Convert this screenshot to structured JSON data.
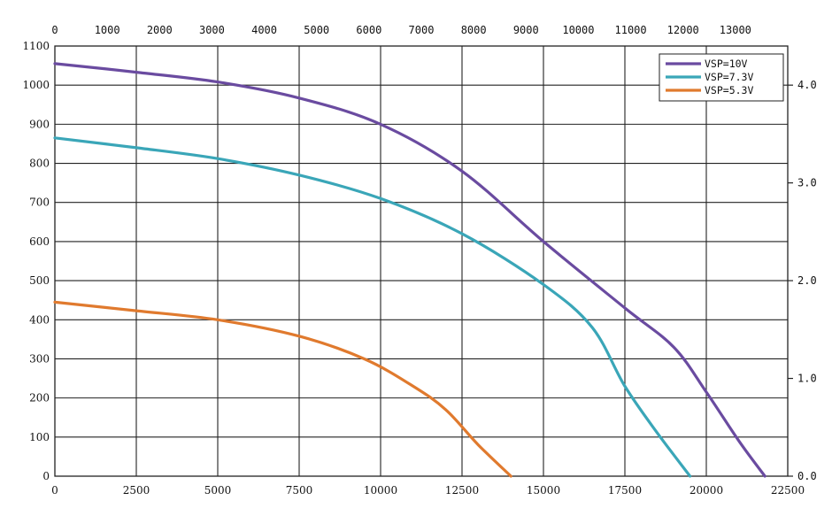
{
  "chart_data": {
    "type": "line",
    "title": "",
    "xlabel": "",
    "ylabel": "",
    "x_ticks": [
      "0",
      "2500",
      "5000",
      "7500",
      "10000",
      "12500",
      "15000",
      "17500",
      "20000",
      "22500"
    ],
    "x_top_ticks": [
      "0",
      "1000",
      "2000",
      "3000",
      "4000",
      "5000",
      "6000",
      "7000",
      "8000",
      "9000",
      "10000",
      "11000",
      "12000",
      "13000"
    ],
    "y_ticks": [
      "0",
      "100",
      "200",
      "300",
      "400",
      "500",
      "600",
      "700",
      "800",
      "900",
      "1000",
      "1100"
    ],
    "y_right_ticks": [
      "0.0",
      "1.0",
      "2.0",
      "3.0",
      "4.0"
    ],
    "xlim": [
      0,
      22500
    ],
    "ylim": [
      0,
      1100
    ],
    "x_top_lim": [
      0,
      14000
    ],
    "y_right_lim": [
      0,
      4.4
    ],
    "grid": true,
    "legend_position": "top-right",
    "series": [
      {
        "name": "VSP=10V",
        "color": "#6a4ba0",
        "points": [
          [
            0,
            1055
          ],
          [
            2500,
            1033
          ],
          [
            5000,
            1008
          ],
          [
            7500,
            967
          ],
          [
            10000,
            900
          ],
          [
            12500,
            780
          ],
          [
            15000,
            600
          ],
          [
            17500,
            430
          ],
          [
            19000,
            330
          ],
          [
            20000,
            215
          ],
          [
            21000,
            90
          ],
          [
            21800,
            0
          ]
        ]
      },
      {
        "name": "VSP=7.3V",
        "color": "#3aa6b8",
        "points": [
          [
            0,
            865
          ],
          [
            2500,
            840
          ],
          [
            5000,
            812
          ],
          [
            7500,
            770
          ],
          [
            10000,
            710
          ],
          [
            12500,
            620
          ],
          [
            15000,
            490
          ],
          [
            16500,
            380
          ],
          [
            17500,
            230
          ],
          [
            18500,
            110
          ],
          [
            19500,
            0
          ]
        ]
      },
      {
        "name": "VSP=5.3V",
        "color": "#e07a2e",
        "points": [
          [
            0,
            445
          ],
          [
            2500,
            423
          ],
          [
            5000,
            400
          ],
          [
            7500,
            358
          ],
          [
            9500,
            300
          ],
          [
            11000,
            230
          ],
          [
            12000,
            170
          ],
          [
            13000,
            80
          ],
          [
            14000,
            0
          ]
        ]
      }
    ]
  }
}
